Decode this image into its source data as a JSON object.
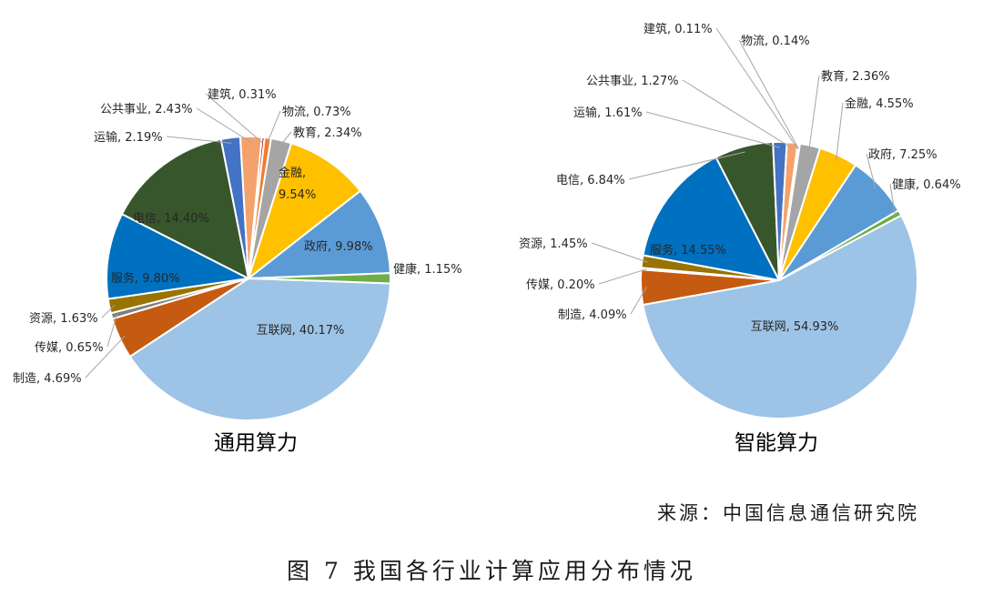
{
  "chart_data": [
    {
      "type": "pie",
      "title": "通用算力",
      "slices": [
        {
          "label": "互联网",
          "value": 40.17,
          "color": "#9dc3e6"
        },
        {
          "label": "制造",
          "value": 4.69,
          "color": "#c55a11"
        },
        {
          "label": "传媒",
          "value": 0.65,
          "color": "#7f7f7f"
        },
        {
          "label": "资源",
          "value": 1.63,
          "color": "#997300"
        },
        {
          "label": "服务",
          "value": 9.8,
          "color": "#0070c0"
        },
        {
          "label": "电信",
          "value": 14.4,
          "color": "#38562c"
        },
        {
          "label": "运输",
          "value": 2.19,
          "color": "#4472c4"
        },
        {
          "label": "公共事业",
          "value": 2.43,
          "color": "#f4a26b"
        },
        {
          "label": "建筑",
          "value": 0.31,
          "color": "#c00000"
        },
        {
          "label": "物流",
          "value": 0.73,
          "color": "#ed7d31"
        },
        {
          "label": "教育",
          "value": 2.34,
          "color": "#a5a5a5"
        },
        {
          "label": "金融",
          "value": 9.54,
          "color": "#ffc000"
        },
        {
          "label": "政府",
          "value": 9.98,
          "color": "#5b9bd5"
        },
        {
          "label": "健康",
          "value": 1.15,
          "color": "#70ad47"
        }
      ]
    },
    {
      "type": "pie",
      "title": "智能算力",
      "slices": [
        {
          "label": "互联网",
          "value": 54.93,
          "color": "#9dc3e6"
        },
        {
          "label": "制造",
          "value": 4.09,
          "color": "#c55a11"
        },
        {
          "label": "传媒",
          "value": 0.2,
          "color": "#7f7f7f"
        },
        {
          "label": "资源",
          "value": 1.45,
          "color": "#997300"
        },
        {
          "label": "服务",
          "value": 14.55,
          "color": "#0070c0"
        },
        {
          "label": "电信",
          "value": 6.84,
          "color": "#38562c"
        },
        {
          "label": "运输",
          "value": 1.61,
          "color": "#4472c4"
        },
        {
          "label": "公共事业",
          "value": 1.27,
          "color": "#f4a26b"
        },
        {
          "label": "建筑",
          "value": 0.11,
          "color": "#c00000"
        },
        {
          "label": "物流",
          "value": 0.14,
          "color": "#ed7d31"
        },
        {
          "label": "教育",
          "value": 2.36,
          "color": "#a5a5a5"
        },
        {
          "label": "金融",
          "value": 4.55,
          "color": "#ffc000"
        },
        {
          "label": "政府",
          "value": 7.25,
          "color": "#5b9bd5"
        },
        {
          "label": "健康",
          "value": 0.64,
          "color": "#70ad47"
        }
      ]
    }
  ],
  "source": "来源：中国信息通信研究院",
  "caption": "图 7 我国各行业计算应用分布情况"
}
